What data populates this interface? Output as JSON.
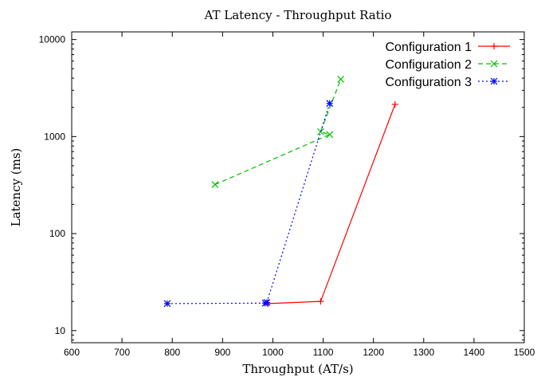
{
  "chart_data": {
    "type": "line",
    "title": "AT Latency - Throughput Ratio",
    "xlabel": "Throughput (AT/s)",
    "ylabel": "Latency (ms)",
    "xlim": [
      600,
      1500
    ],
    "ylim": [
      7.5,
      12000
    ],
    "yscale": "log",
    "x_ticks": [
      "600",
      "700",
      "800",
      "900",
      "1000",
      "1100",
      "1200",
      "1300",
      "1400",
      "1500"
    ],
    "y_ticks": [
      "10",
      "100",
      "1000",
      "10000"
    ],
    "grid": false,
    "legend_position": "top-right",
    "series": [
      {
        "name": "Configuration 1",
        "color": "#ff0000",
        "dash": "solid",
        "marker": "plus",
        "points": [
          [
            990,
            19
          ],
          [
            1095,
            20
          ],
          [
            1243,
            2150
          ]
        ]
      },
      {
        "name": "Configuration 2",
        "color": "#00c000",
        "dash": "dashed",
        "marker": "x",
        "points": [
          [
            885,
            320
          ],
          [
            1113,
            1050
          ],
          [
            1095,
            1120
          ],
          [
            1135,
            3900
          ]
        ]
      },
      {
        "name": "Configuration 3",
        "color": "#0000ff",
        "dash": "dotted",
        "marker": "star",
        "points": [
          [
            790,
            19
          ],
          [
            985,
            19.2
          ],
          [
            988,
            19.5
          ],
          [
            1113,
            2200
          ]
        ]
      }
    ]
  }
}
